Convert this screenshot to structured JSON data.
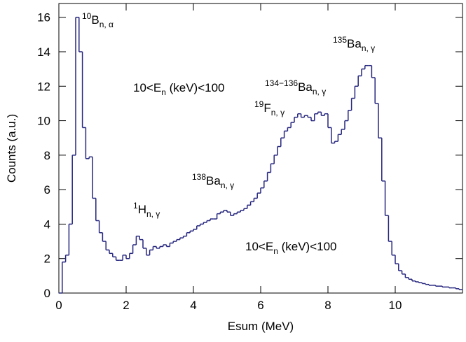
{
  "chart_data": {
    "type": "histogram",
    "xlabel": "Esum (MeV)",
    "ylabel": "Counts (a.u.)",
    "color": "#25257f",
    "xlim": [
      0,
      12
    ],
    "ylim": [
      0,
      16.8
    ],
    "xticks": [
      0,
      2,
      4,
      6,
      8,
      10
    ],
    "yticks": [
      0,
      2,
      4,
      6,
      8,
      10,
      12,
      14,
      16
    ],
    "bins": [
      0,
      0.1,
      0.2,
      0.3,
      0.4,
      0.5,
      0.6,
      0.7,
      0.8,
      0.9,
      1.0,
      1.1,
      1.2,
      1.3,
      1.4,
      1.5,
      1.6,
      1.7,
      1.8,
      1.9,
      2.0,
      2.1,
      2.2,
      2.3,
      2.4,
      2.5,
      2.6,
      2.7,
      2.8,
      2.9,
      3.0,
      3.1,
      3.2,
      3.3,
      3.4,
      3.5,
      3.6,
      3.7,
      3.8,
      3.9,
      4.0,
      4.1,
      4.2,
      4.3,
      4.4,
      4.5,
      4.6,
      4.7,
      4.8,
      4.9,
      5.0,
      5.1,
      5.2,
      5.3,
      5.4,
      5.5,
      5.6,
      5.7,
      5.8,
      5.9,
      6.0,
      6.1,
      6.2,
      6.3,
      6.4,
      6.5,
      6.6,
      6.7,
      6.8,
      6.9,
      7.0,
      7.1,
      7.2,
      7.3,
      7.4,
      7.5,
      7.6,
      7.7,
      7.8,
      7.9,
      8.0,
      8.1,
      8.2,
      8.3,
      8.4,
      8.5,
      8.6,
      8.7,
      8.8,
      8.9,
      9.0,
      9.1,
      9.2,
      9.3,
      9.4,
      9.5,
      9.6,
      9.7,
      9.8,
      9.9,
      10.0,
      10.1,
      10.2,
      10.3,
      10.4,
      10.5,
      10.6,
      10.7,
      10.8,
      10.9,
      11.0,
      11.1,
      11.2,
      11.3,
      11.4,
      11.5,
      11.6,
      11.7,
      11.8,
      11.9,
      12.0
    ],
    "values": [
      0,
      1.8,
      2.2,
      4,
      8,
      16,
      14,
      9.6,
      7.8,
      7.9,
      5.5,
      4.2,
      3.5,
      3.0,
      2.5,
      2.3,
      2.1,
      1.9,
      1.9,
      2.2,
      2.0,
      2.3,
      2.8,
      3.3,
      3.1,
      2.6,
      2.2,
      2.5,
      2.7,
      2.6,
      2.7,
      2.8,
      2.7,
      2.9,
      3.0,
      3.1,
      3.2,
      3.3,
      3.5,
      3.6,
      3.7,
      3.9,
      4.0,
      4.1,
      4.2,
      4.3,
      4.3,
      4.6,
      4.7,
      4.8,
      4.7,
      4.5,
      4.6,
      4.7,
      4.8,
      4.9,
      5.1,
      5.3,
      5.5,
      5.8,
      6.1,
      6.5,
      7.0,
      7.5,
      8.0,
      8.5,
      9.0,
      9.4,
      9.6,
      9.9,
      10.2,
      10.4,
      10.2,
      10.3,
      10.2,
      10.0,
      10.4,
      10.5,
      10.3,
      10.4,
      9.6,
      8.7,
      8.8,
      9.2,
      9.5,
      10.0,
      10.6,
      11.3,
      12.0,
      12.6,
      13.0,
      13.2,
      13.2,
      12.5,
      11.0,
      9.0,
      6.5,
      4.5,
      3.0,
      2.2,
      1.7,
      1.3,
      1.1,
      0.9,
      0.8,
      0.7,
      0.65,
      0.6,
      0.55,
      0.5,
      0.45,
      0.45,
      0.4,
      0.4,
      0.35,
      0.35,
      0.3,
      0.3,
      0.25,
      0.2
    ],
    "annotations": [
      {
        "sup": "10",
        "text": "B",
        "sub": "n, α"
      },
      {
        "text": "10<E",
        "sub": "n",
        "tail": " (keV)<100"
      },
      {
        "sup": "135",
        "text": "Ba",
        "sub": "n, γ"
      },
      {
        "sup": "134−136",
        "text": "Ba",
        "sub": "n, γ"
      },
      {
        "sup": "19",
        "text": "F",
        "sub": "n, γ"
      },
      {
        "sup": "138",
        "text": "Ba",
        "sub": "n, γ"
      },
      {
        "sup": "1",
        "text": "H",
        "sub": "n, γ"
      },
      {
        "text": "10<E",
        "sub": "n",
        "tail": " (keV)<100"
      }
    ]
  }
}
